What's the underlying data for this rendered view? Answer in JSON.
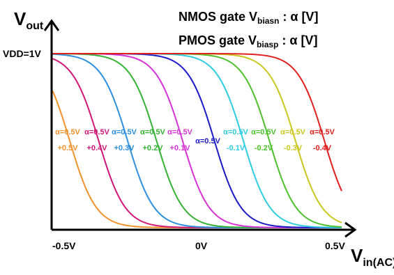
{
  "legend": {
    "nmos_prefix": "NMOS gate V",
    "nmos_sub": "biasn",
    "nmos_suffix": " : α [V]",
    "pmos_prefix": "PMOS gate V",
    "pmos_sub": "biasp",
    "pmos_suffix": " : α [V]"
  },
  "chart_data": {
    "type": "line",
    "title": "",
    "ylabel_main": "V",
    "ylabel_sub": "out",
    "xlabel_main": "V",
    "xlabel_sub": "in(AC)",
    "vdd_label": "VDD=1V",
    "xticks": [
      {
        "value": -0.5,
        "label": "-0.5V"
      },
      {
        "value": 0,
        "label": "0V"
      },
      {
        "value": 0.5,
        "label": "0.5V"
      }
    ],
    "xlim": [
      -0.5,
      0.5
    ],
    "ylim": [
      0,
      1
    ],
    "series": [
      {
        "color": "#F0922A",
        "line1": "α=0.5V",
        "line2": "+0.5V",
        "midpoint": -0.44
      },
      {
        "color": "#D11677",
        "line1": "α=0.5V",
        "line2": "+0.4V",
        "midpoint": -0.34
      },
      {
        "color": "#2D8FE0",
        "line1": "α=0.5V",
        "line2": "+0.3V",
        "midpoint": -0.24
      },
      {
        "color": "#33B233",
        "line1": "α=0.5V",
        "line2": "+0.2V",
        "midpoint": -0.14
      },
      {
        "color": "#D633D6",
        "line1": "α=0.5V",
        "line2": "+0.1V",
        "midpoint": -0.05
      },
      {
        "color": "#1A1AC8",
        "line1": "α=0.5V",
        "line2": "",
        "midpoint": 0.06
      },
      {
        "color": "#2ECCE0",
        "line1": "α=0.5V",
        "line2": "-0.1V",
        "midpoint": 0.16
      },
      {
        "color": "#4DC02B",
        "line1": "α=0.5V",
        "line2": "-0.2V",
        "midpoint": 0.25
      },
      {
        "color": "#C9C61E",
        "line1": "α=0.5V",
        "line2": "-0.3V",
        "midpoint": 0.34
      },
      {
        "color": "#E0201E",
        "line1": "α=0.5V",
        "line2": "-0.4V",
        "midpoint": 0.44
      }
    ]
  }
}
